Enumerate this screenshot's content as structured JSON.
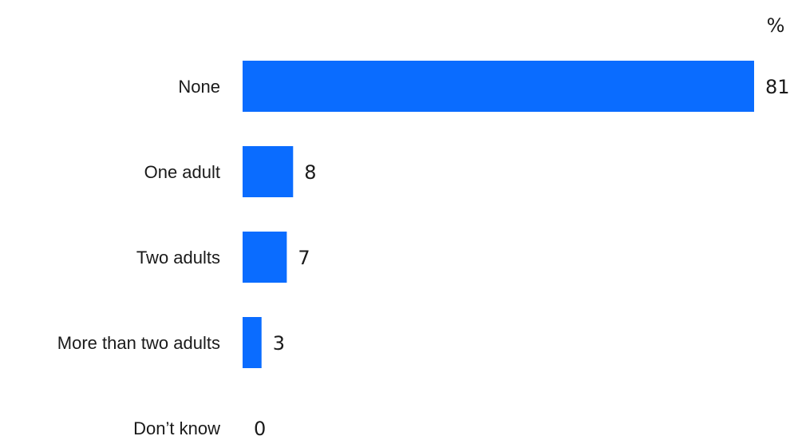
{
  "chart_data": {
    "type": "bar",
    "orientation": "horizontal",
    "unit_label": "%",
    "categories": [
      "None",
      "One adult",
      "Two adults",
      "More than two adults",
      "Don’t know"
    ],
    "values": [
      81,
      8,
      7,
      3,
      0
    ],
    "xlim": [
      0,
      81
    ],
    "grid": false,
    "bar_color": "#0a6cff"
  }
}
